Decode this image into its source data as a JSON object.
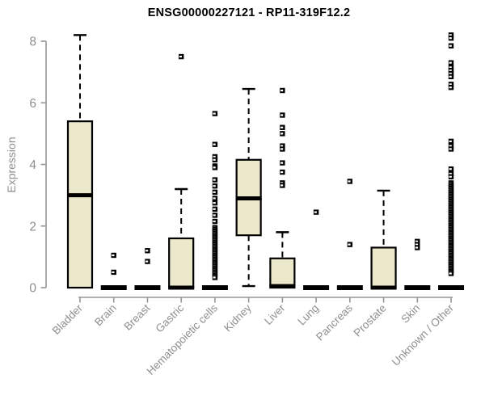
{
  "page": {
    "background_color": "#ffffff"
  },
  "chart_data": {
    "type": "boxplot",
    "title": "ENSG00000227121 - RP11-319F12.2",
    "xlabel": "",
    "ylabel": "Expression",
    "ylim": [
      0,
      8
    ],
    "yticks": [
      0,
      2,
      4,
      6,
      8
    ],
    "grid": false,
    "legend": "none",
    "colors": {
      "box_fill": "#ece8cc",
      "box_stroke": "#000000",
      "median": "#000000",
      "whisker": "#000000",
      "outlier": "#000000",
      "axis": "#969696",
      "tick_text": "#8f8f8f",
      "title_text": "#000000"
    },
    "categories": [
      "Bladder",
      "Brain",
      "Breast",
      "Gastric",
      "Hematopoietic cells",
      "Kidney",
      "Liver",
      "Lung",
      "Pancreas",
      "Prostate",
      "Skin",
      "Unknown / Other"
    ],
    "series": [
      {
        "category": "Bladder",
        "q1": 0,
        "median": 3.0,
        "q3": 5.4,
        "whisker_low": 0,
        "whisker_high": 8.2,
        "outliers": []
      },
      {
        "category": "Brain",
        "q1": 0,
        "median": 0,
        "q3": 0,
        "whisker_low": 0,
        "whisker_high": 0,
        "outliers": [
          1.05,
          0.5
        ]
      },
      {
        "category": "Breast",
        "q1": 0,
        "median": 0,
        "q3": 0,
        "whisker_low": 0,
        "whisker_high": 0,
        "outliers": [
          1.2,
          0.85
        ]
      },
      {
        "category": "Gastric",
        "q1": 0,
        "median": 0,
        "q3": 1.6,
        "whisker_low": 0,
        "whisker_high": 3.2,
        "outliers": [
          7.5
        ]
      },
      {
        "category": "Hematopoietic cells",
        "q1": 0,
        "median": 0,
        "q3": 0,
        "whisker_low": 0,
        "whisker_high": 0,
        "outliers": [
          5.65,
          4.65,
          4.25,
          4.15,
          3.95,
          3.9,
          3.5,
          3.3,
          3.1,
          2.9,
          2.75,
          2.55,
          2.35,
          2.15,
          1.95,
          1.89,
          1.83,
          1.77,
          1.71,
          1.65,
          1.59,
          1.53,
          1.47,
          1.41,
          1.35,
          1.29,
          1.23,
          1.17,
          1.11,
          1.05,
          0.99,
          0.93,
          0.87,
          0.81,
          0.75,
          0.69,
          0.63,
          0.57,
          0.51,
          0.45,
          0.39,
          0.33
        ]
      },
      {
        "category": "Kidney",
        "q1": 1.7,
        "median": 2.9,
        "q3": 4.15,
        "whisker_low": 0.05,
        "whisker_high": 6.45,
        "outliers": []
      },
      {
        "category": "Liver",
        "q1": 0,
        "median": 0.05,
        "q3": 0.95,
        "whisker_low": 0,
        "whisker_high": 1.8,
        "outliers": [
          6.4,
          5.6,
          5.2,
          5.0,
          4.6,
          4.5,
          4.05,
          3.75,
          3.4,
          3.32
        ]
      },
      {
        "category": "Lung",
        "q1": 0,
        "median": 0,
        "q3": 0,
        "whisker_low": 0,
        "whisker_high": 0,
        "outliers": [
          2.45
        ]
      },
      {
        "category": "Pancreas",
        "q1": 0,
        "median": 0,
        "q3": 0,
        "whisker_low": 0,
        "whisker_high": 0,
        "outliers": [
          3.45,
          1.4
        ]
      },
      {
        "category": "Prostate",
        "q1": 0,
        "median": 0,
        "q3": 1.3,
        "whisker_low": 0,
        "whisker_high": 3.15,
        "outliers": []
      },
      {
        "category": "Skin",
        "q1": 0,
        "median": 0,
        "q3": 0,
        "whisker_low": 0,
        "whisker_high": 0,
        "outliers": [
          1.5,
          1.4,
          1.3
        ]
      },
      {
        "category": "Unknown / Other",
        "q1": 0,
        "median": 0,
        "q3": 0,
        "whisker_low": 0,
        "whisker_high": 0,
        "outliers": [
          8.2,
          8.1,
          7.85,
          7.3,
          7.15,
          7.05,
          6.95,
          6.85,
          6.6,
          6.5,
          4.75,
          4.6,
          4.5,
          3.85,
          3.7,
          3.6,
          3.4,
          3.34,
          3.28,
          3.22,
          3.16,
          3.1,
          3.04,
          2.98,
          2.92,
          2.86,
          2.8,
          2.74,
          2.68,
          2.62,
          2.56,
          2.5,
          2.44,
          2.38,
          2.32,
          2.26,
          2.2,
          2.14,
          2.08,
          2.02,
          1.96,
          1.9,
          1.84,
          1.78,
          1.72,
          1.66,
          1.6,
          1.54,
          1.48,
          1.42,
          1.36,
          1.3,
          1.24,
          1.18,
          1.12,
          1.06,
          1.0,
          0.94,
          0.88,
          0.82,
          0.76,
          0.7,
          0.64,
          0.58,
          0.52,
          0.46
        ]
      }
    ]
  }
}
